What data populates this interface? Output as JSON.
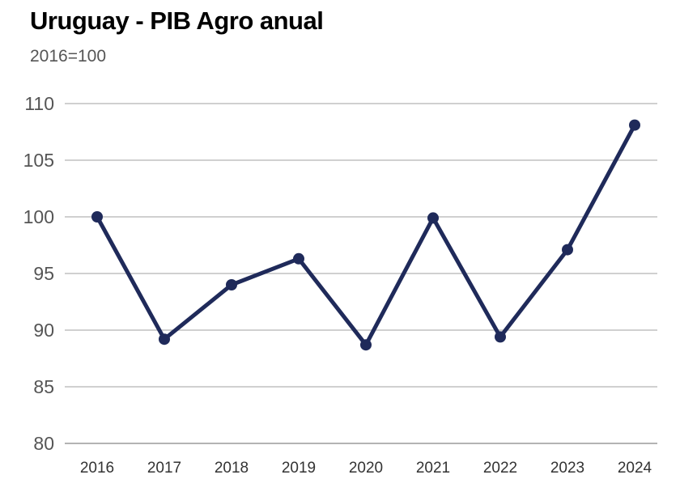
{
  "title": "Uruguay - PIB Agro anual",
  "subtitle": "2016=100",
  "colors": {
    "line": "#1f2a5a",
    "grid": "#b5b5b5",
    "axis": "#9a9a9a"
  },
  "chart_data": {
    "type": "line",
    "title": "Uruguay - PIB Agro anual",
    "subtitle": "2016=100",
    "xlabel": "",
    "ylabel": "",
    "categories": [
      "2016",
      "2017",
      "2018",
      "2019",
      "2020",
      "2021",
      "2022",
      "2023",
      "2024"
    ],
    "values": [
      100,
      89.2,
      94.0,
      96.3,
      88.7,
      99.9,
      89.4,
      97.1,
      108.1
    ],
    "ylim": [
      80,
      110
    ],
    "yticks": [
      "80",
      "85",
      "90",
      "95",
      "100",
      "105",
      "110"
    ],
    "grid": true,
    "legend": "none"
  }
}
